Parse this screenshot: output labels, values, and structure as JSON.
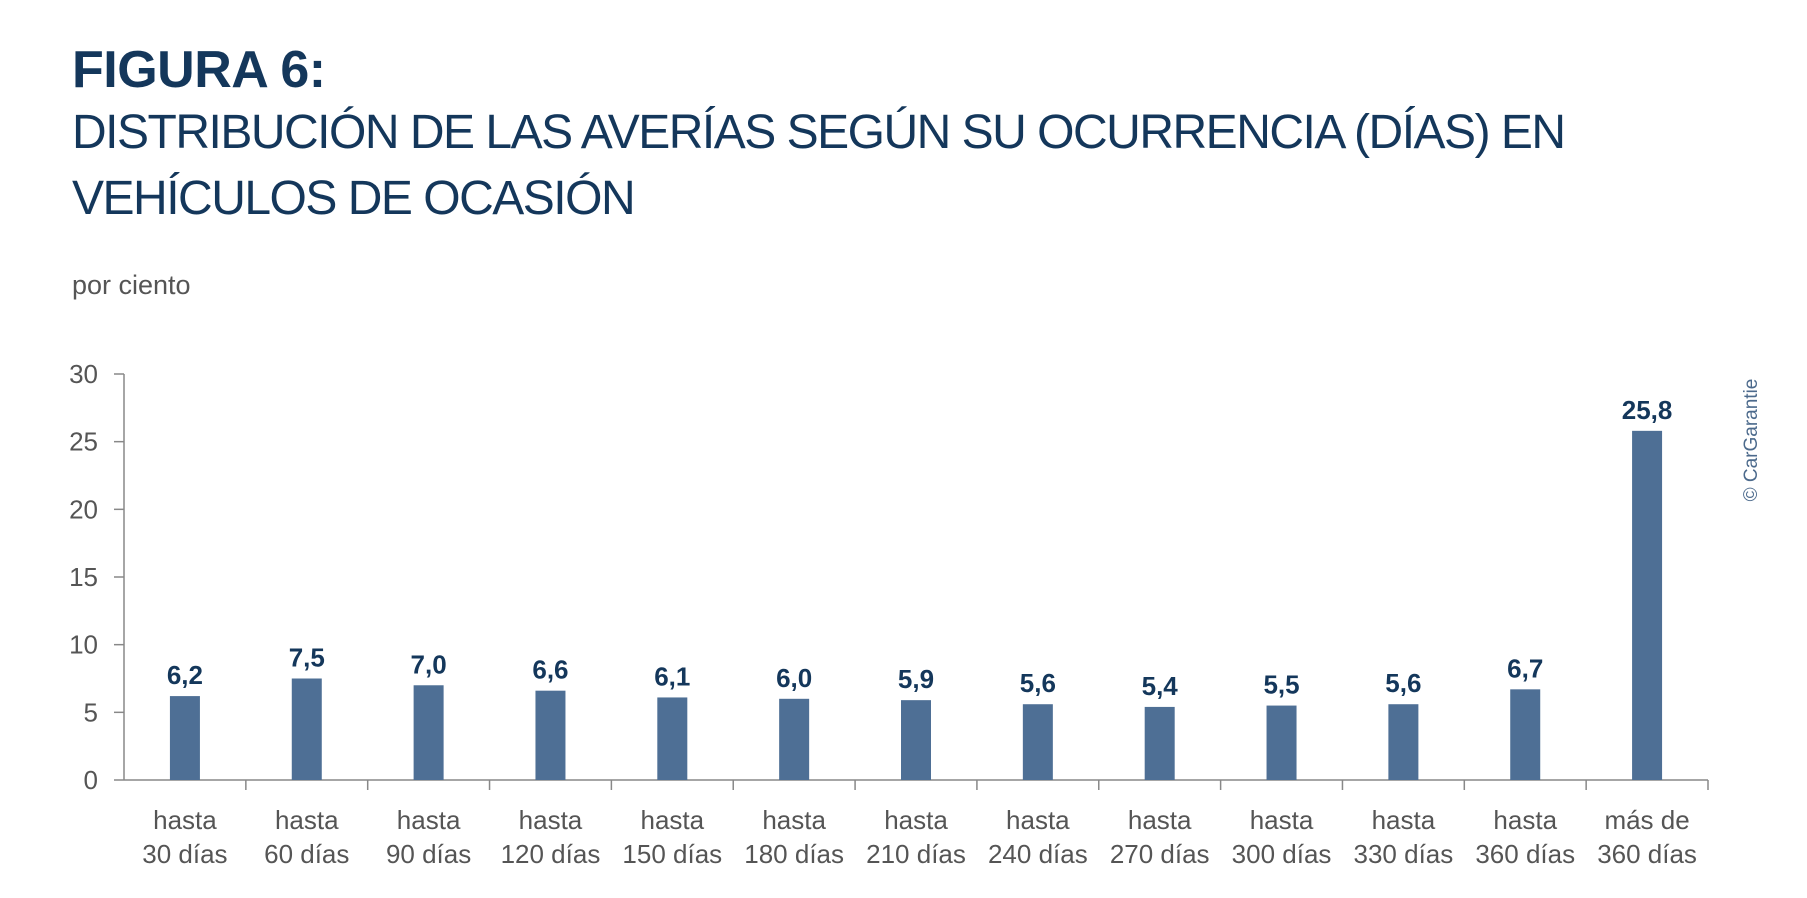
{
  "header": {
    "figure_label": "FIGURA 6:",
    "title": "DISTRIBUCIÓN DE LAS AVERÍAS SEGÚN SU OCURRENCIA (DÍAS) EN VEHÍCULOS DE OCASIÓN",
    "unit": "por ciento",
    "credit": "© CarGarantie"
  },
  "chart_data": {
    "type": "bar",
    "title": "DISTRIBUCIÓN DE LAS AVERÍAS SEGÚN SU OCURRENCIA (DÍAS) EN VEHÍCULOS DE OCASIÓN",
    "ylabel": "por ciento",
    "xlabel": "",
    "categories": [
      [
        "hasta",
        "30 días"
      ],
      [
        "hasta",
        "60 días"
      ],
      [
        "hasta",
        "90 días"
      ],
      [
        "hasta",
        "120 días"
      ],
      [
        "hasta",
        "150 días"
      ],
      [
        "hasta",
        "180 días"
      ],
      [
        "hasta",
        "210 días"
      ],
      [
        "hasta",
        "240 días"
      ],
      [
        "hasta",
        "270 días"
      ],
      [
        "hasta",
        "300 días"
      ],
      [
        "hasta",
        "330 días"
      ],
      [
        "hasta",
        "360 días"
      ],
      [
        "más de",
        "360 días"
      ]
    ],
    "values": [
      6.2,
      7.5,
      7.0,
      6.6,
      6.1,
      6.0,
      5.9,
      5.6,
      5.4,
      5.5,
      5.6,
      6.7,
      25.8
    ],
    "value_labels": [
      "6,2",
      "7,5",
      "7,0",
      "6,6",
      "6,1",
      "6,0",
      "5,9",
      "5,6",
      "5,4",
      "5,5",
      "5,6",
      "6,7",
      "25,8"
    ],
    "ylim": [
      0,
      30
    ],
    "yticks": [
      0,
      5,
      10,
      15,
      20,
      25,
      30
    ],
    "grid": false,
    "legend": "none",
    "colors": {
      "bar": "#4e6f95",
      "value_label": "#14375b",
      "axis": "#888888",
      "tick_label": "#555555",
      "title": "#14375b"
    }
  }
}
